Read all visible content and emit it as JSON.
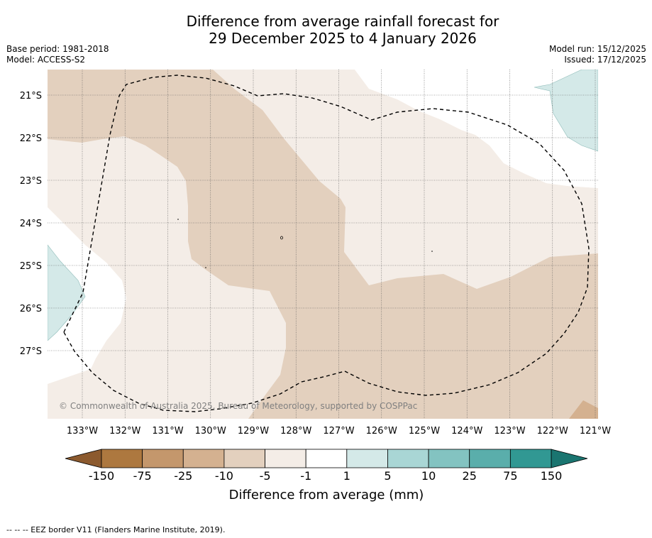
{
  "header": {
    "title_line1": "Difference from average rainfall forecast for",
    "title_line2": "29 December 2025 to 4 January 2026",
    "base_period": "Base period: 1981-2018",
    "model": "Model: ACCESS-S2",
    "model_run": "Model run: 15/12/2025",
    "issued": "Issued: 17/12/2025"
  },
  "map": {
    "lat_labels": [
      "21°S",
      "22°S",
      "23°S",
      "24°S",
      "25°S",
      "26°S",
      "27°S"
    ],
    "lon_labels": [
      "133°W",
      "132°W",
      "131°W",
      "130°W",
      "129°W",
      "128°W",
      "127°W",
      "126°W",
      "125°W",
      "124°W",
      "123°W",
      "122°W",
      "121°W"
    ],
    "credit": "© Commonwealth of Australia 2025, Bureau of Meteorology, supported by COSPPac",
    "category_colors": {
      "below_minus_150": "#8c5a2e",
      "minus_150_to_minus_75": "#ad783f",
      "minus_75_to_minus_25": "#c4976c",
      "minus_25_to_minus_10": "#d4b190",
      "minus_10_to_minus_5": "#e3d0be",
      "minus_5_to_minus_1": "#f4ede7",
      "minus_1_to_1": "#ffffff",
      "1_to_5": "#d4e9e8",
      "5_to_10": "#a9d6d5",
      "10_to_25": "#83c3c1",
      "25_to_75": "#5aaeab",
      "75_to_150": "#319893",
      "above_150": "#1a7570"
    }
  },
  "colorbar": {
    "labels": [
      "-150",
      "-75",
      "-25",
      "-10",
      "-5",
      "-1",
      "1",
      "5",
      "10",
      "25",
      "75",
      "150"
    ],
    "colors": [
      "#ad783f",
      "#c4976c",
      "#d4b190",
      "#e3d0be",
      "#f4ede7",
      "#ffffff",
      "#d4e9e8",
      "#a9d6d5",
      "#83c3c1",
      "#5aaeab",
      "#319893"
    ],
    "low_extend_color": "#8c5a2e",
    "high_extend_color": "#1a7570",
    "title": "Difference from average (mm)"
  },
  "footnote": "--  --  -- EEZ border V11 (Flanders Marine Institute, 2019)."
}
